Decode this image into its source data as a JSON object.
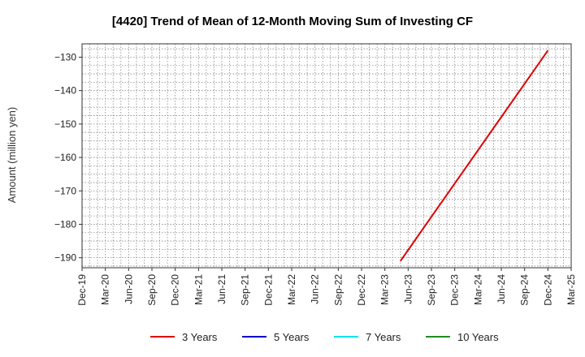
{
  "chart_data": {
    "type": "line",
    "title": "[4420]  Trend of Mean of 12-Month Moving Sum of Investing CF",
    "ylabel": "Amount (million yen)",
    "xlabel": "",
    "ylim": [
      -193,
      -126
    ],
    "yticks": [
      -130,
      -140,
      -150,
      -160,
      -170,
      -180,
      -190
    ],
    "xticks": [
      "Dec-19",
      "Mar-20",
      "Jun-20",
      "Sep-20",
      "Dec-20",
      "Mar-21",
      "Jun-21",
      "Sep-21",
      "Dec-21",
      "Mar-22",
      "Jun-22",
      "Sep-22",
      "Dec-22",
      "Mar-23",
      "Jun-23",
      "Sep-23",
      "Dec-23",
      "Mar-24",
      "Jun-24",
      "Sep-24",
      "Dec-24",
      "Mar-25"
    ],
    "grid": true,
    "legend_position": "bottom",
    "series": [
      {
        "name": "3 Years",
        "color": "#dd0000",
        "x": [
          "May-23",
          "Dec-24"
        ],
        "y": [
          -191,
          -128
        ]
      },
      {
        "name": "5 Years",
        "color": "#0000cc",
        "x": [],
        "y": []
      },
      {
        "name": "7 Years",
        "color": "#00e5ee",
        "x": [],
        "y": []
      },
      {
        "name": "10 Years",
        "color": "#228b22",
        "x": [],
        "y": []
      }
    ]
  }
}
